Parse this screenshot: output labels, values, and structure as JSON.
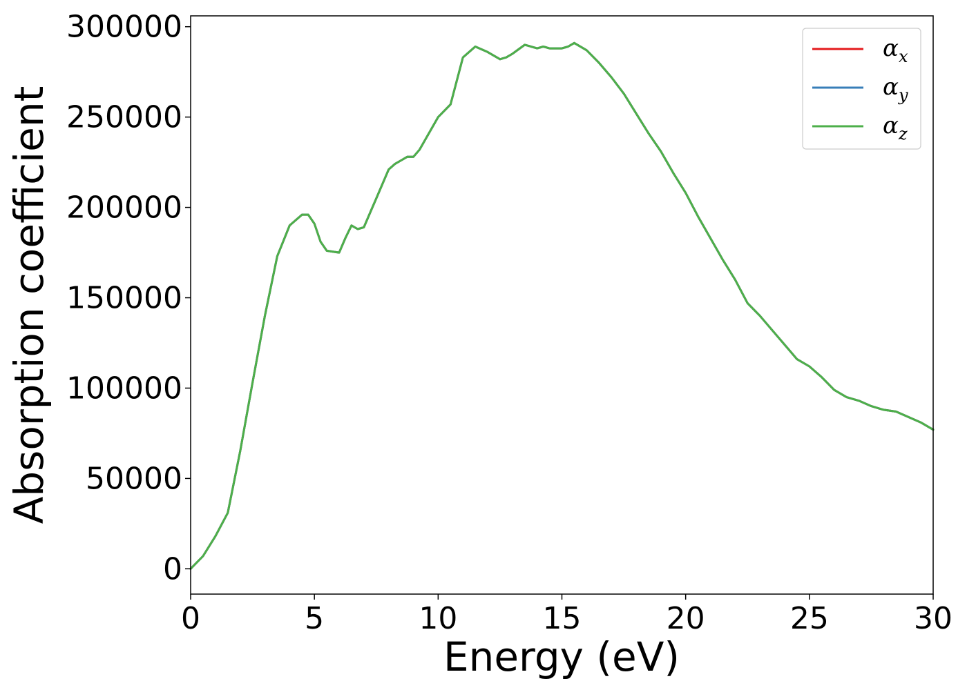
{
  "chart_data": {
    "type": "line",
    "xlabel": "Energy (eV)",
    "ylabel": "Absorption coefficient",
    "xlim": [
      0,
      30
    ],
    "ylim": [
      -14000,
      306000
    ],
    "xticks": [
      0,
      5,
      10,
      15,
      20,
      25,
      30
    ],
    "yticks": [
      0,
      50000,
      100000,
      150000,
      200000,
      250000,
      300000
    ],
    "grid": false,
    "legend_position": "top-right",
    "x": [
      0,
      0.5,
      1.0,
      1.5,
      2.0,
      2.5,
      3.0,
      3.5,
      4.0,
      4.5,
      4.75,
      5.0,
      5.25,
      5.5,
      6.0,
      6.25,
      6.5,
      6.75,
      7.0,
      7.25,
      7.5,
      8.0,
      8.25,
      8.5,
      8.75,
      9.0,
      9.25,
      9.5,
      10.0,
      10.5,
      11.0,
      11.5,
      12.0,
      12.5,
      12.75,
      13.0,
      13.5,
      14.0,
      14.25,
      14.5,
      15.0,
      15.25,
      15.5,
      16.0,
      16.5,
      17.0,
      17.5,
      18.0,
      18.5,
      19.0,
      19.5,
      20.0,
      20.5,
      21.0,
      21.5,
      22.0,
      22.5,
      23.0,
      23.5,
      24.0,
      24.5,
      25.0,
      25.5,
      26.0,
      26.5,
      27.0,
      27.5,
      28.0,
      28.5,
      29.0,
      29.5,
      30.0
    ],
    "series": [
      {
        "name": "αx",
        "legend_base": "α",
        "legend_sub": "x",
        "color": "#e41a1c",
        "values": [
          0,
          7000,
          18000,
          31000,
          65000,
          103000,
          140000,
          173000,
          190000,
          196000,
          196000,
          191000,
          181000,
          176000,
          175000,
          183000,
          190000,
          188000,
          189000,
          197000,
          205000,
          221000,
          224000,
          226000,
          228000,
          228000,
          232000,
          238000,
          250000,
          257000,
          283000,
          289000,
          286000,
          282000,
          283000,
          285000,
          290000,
          288000,
          289000,
          288000,
          288000,
          289000,
          291000,
          287000,
          280000,
          272000,
          263000,
          252000,
          241000,
          231000,
          219000,
          208000,
          195000,
          183000,
          171000,
          160000,
          147000,
          140000,
          132000,
          124000,
          116000,
          112000,
          106000,
          99000,
          95000,
          93000,
          90000,
          88000,
          87000,
          84000,
          81000,
          77000
        ]
      },
      {
        "name": "αy",
        "legend_base": "α",
        "legend_sub": "y",
        "color": "#377eb8",
        "values": [
          0,
          7000,
          18000,
          31000,
          65000,
          103000,
          140000,
          173000,
          190000,
          196000,
          196000,
          191000,
          181000,
          176000,
          175000,
          183000,
          190000,
          188000,
          189000,
          197000,
          205000,
          221000,
          224000,
          226000,
          228000,
          228000,
          232000,
          238000,
          250000,
          257000,
          283000,
          289000,
          286000,
          282000,
          283000,
          285000,
          290000,
          288000,
          289000,
          288000,
          288000,
          289000,
          291000,
          287000,
          280000,
          272000,
          263000,
          252000,
          241000,
          231000,
          219000,
          208000,
          195000,
          183000,
          171000,
          160000,
          147000,
          140000,
          132000,
          124000,
          116000,
          112000,
          106000,
          99000,
          95000,
          93000,
          90000,
          88000,
          87000,
          84000,
          81000,
          77000
        ]
      },
      {
        "name": "αz",
        "legend_base": "α",
        "legend_sub": "z",
        "color": "#4daf4a",
        "values": [
          0,
          7000,
          18000,
          31000,
          65000,
          103000,
          140000,
          173000,
          190000,
          196000,
          196000,
          191000,
          181000,
          176000,
          175000,
          183000,
          190000,
          188000,
          189000,
          197000,
          205000,
          221000,
          224000,
          226000,
          228000,
          228000,
          232000,
          238000,
          250000,
          257000,
          283000,
          289000,
          286000,
          282000,
          283000,
          285000,
          290000,
          288000,
          289000,
          288000,
          288000,
          289000,
          291000,
          287000,
          280000,
          272000,
          263000,
          252000,
          241000,
          231000,
          219000,
          208000,
          195000,
          183000,
          171000,
          160000,
          147000,
          140000,
          132000,
          124000,
          116000,
          112000,
          106000,
          99000,
          95000,
          93000,
          90000,
          88000,
          87000,
          84000,
          81000,
          77000
        ]
      }
    ]
  }
}
